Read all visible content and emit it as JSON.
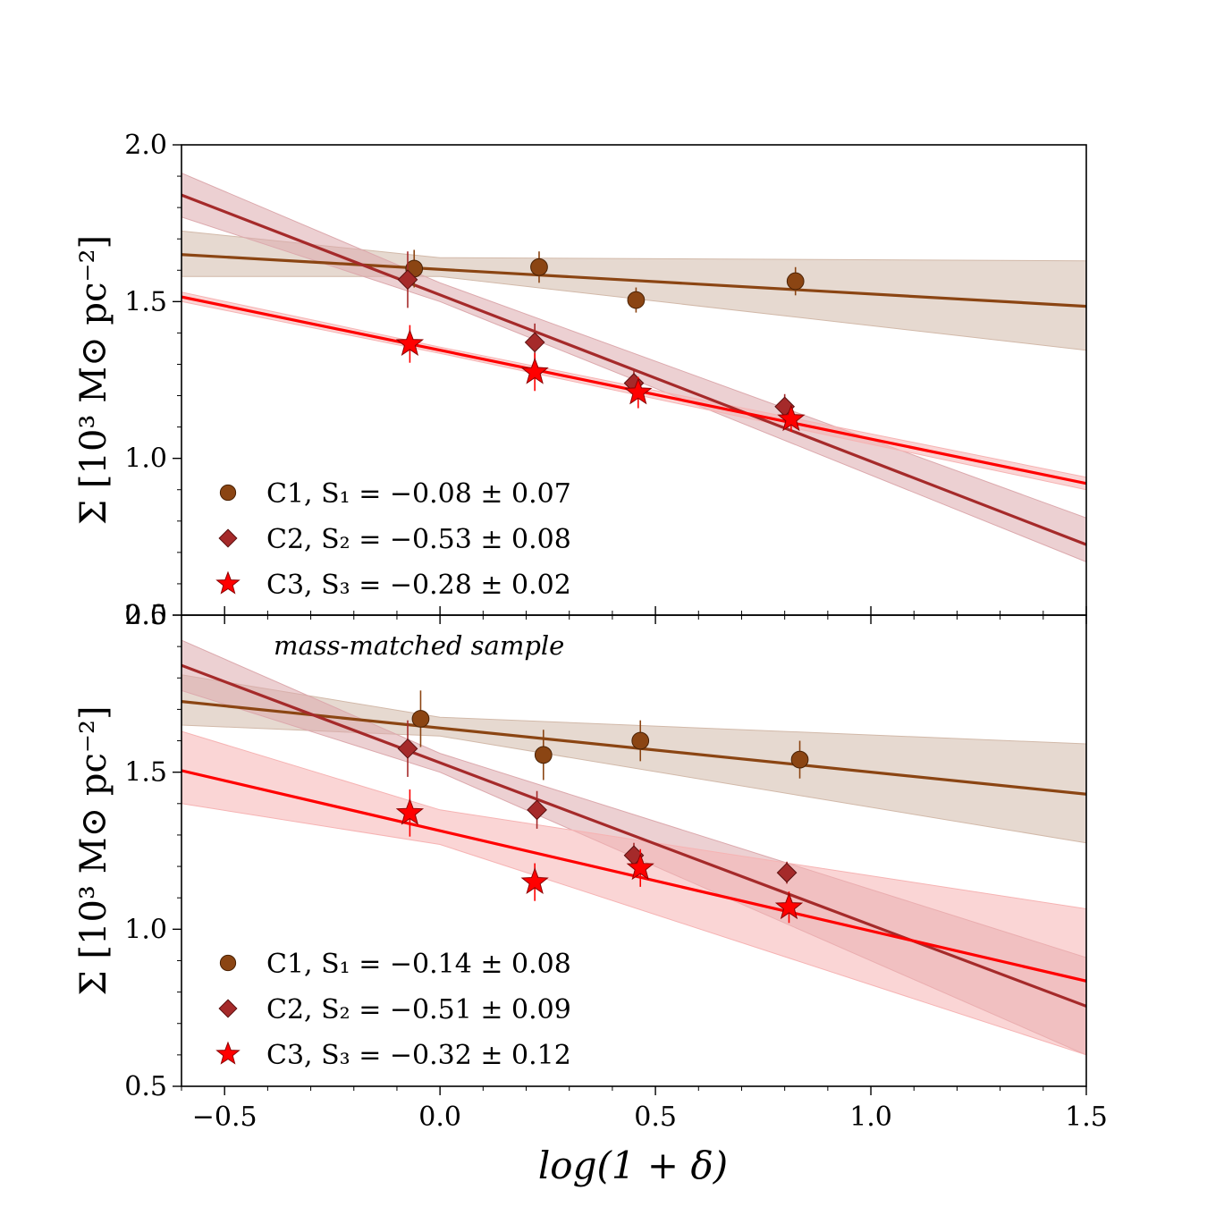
{
  "chart_data": [
    {
      "type": "scatter",
      "panel": "top",
      "title": "",
      "annotation": "",
      "xlabel": "log(1 + δ)",
      "ylabel": "Σ [10³ M⊙ pc⁻²]",
      "xlim": [
        -0.6,
        1.5
      ],
      "ylim": [
        0.5,
        2.0
      ],
      "x_ticks": [
        "−0.5",
        "0.0",
        "0.5",
        "1.0",
        "1.5"
      ],
      "y_ticks": [
        "0.5",
        "1.0",
        "1.5",
        "2.0"
      ],
      "legend_position": "lower-left",
      "series": [
        {
          "name": "C1",
          "label": "C1,  S₁ = −0.08 ± 0.07",
          "marker": "circle",
          "color": "#8B4513",
          "band_color": "#D2B9A9",
          "points": [
            {
              "x": -0.06,
              "y": 1.605,
              "err": 0.06
            },
            {
              "x": 0.23,
              "y": 1.61,
              "err": 0.05
            },
            {
              "x": 0.455,
              "y": 1.505,
              "err": 0.04
            },
            {
              "x": 0.825,
              "y": 1.565,
              "err": 0.045
            }
          ],
          "fit": {
            "x0": -0.6,
            "x1": 1.5,
            "y0": 1.65,
            "y1": 1.485
          },
          "band": {
            "x": [
              -0.6,
              0.0,
              1.5
            ],
            "lo": [
              1.58,
              1.58,
              1.345
            ],
            "hi": [
              1.725,
              1.64,
              1.63
            ]
          }
        },
        {
          "name": "C2",
          "label": "C2,  S₂ = −0.53 ± 0.08",
          "marker": "diamond",
          "color": "#A52A2A",
          "band_color": "#DCA9AD",
          "points": [
            {
              "x": -0.075,
              "y": 1.57,
              "err": 0.09
            },
            {
              "x": 0.22,
              "y": 1.37,
              "err": 0.06
            },
            {
              "x": 0.45,
              "y": 1.24,
              "err": 0.04
            },
            {
              "x": 0.8,
              "y": 1.165,
              "err": 0.04
            }
          ],
          "fit": {
            "x0": -0.6,
            "x1": 1.5,
            "y0": 1.84,
            "y1": 0.725
          },
          "band": {
            "x": [
              -0.6,
              0.0,
              1.5
            ],
            "lo": [
              1.77,
              1.5,
              0.67
            ],
            "hi": [
              1.91,
              1.56,
              0.81
            ]
          }
        },
        {
          "name": "C3",
          "label": "C3,  S₃ = −0.28 ± 0.02",
          "marker": "star",
          "color": "#FF0000",
          "band_color": "#F6B3B3",
          "points": [
            {
              "x": -0.07,
              "y": 1.365,
              "err": 0.06
            },
            {
              "x": 0.22,
              "y": 1.275,
              "err": 0.06
            },
            {
              "x": 0.46,
              "y": 1.21,
              "err": 0.05
            },
            {
              "x": 0.815,
              "y": 1.125,
              "err": 0.04
            }
          ],
          "fit": {
            "x0": -0.6,
            "x1": 1.5,
            "y0": 1.515,
            "y1": 0.92
          },
          "band": {
            "x": [
              -0.6,
              0.0,
              1.5
            ],
            "lo": [
              1.5,
              1.335,
              0.9
            ],
            "hi": [
              1.53,
              1.355,
              0.94
            ]
          }
        }
      ]
    },
    {
      "type": "scatter",
      "panel": "bottom",
      "title": "",
      "annotation": "mass-matched sample",
      "xlabel": "log(1 + δ)",
      "ylabel": "Σ [10³ M⊙ pc⁻²]",
      "xlim": [
        -0.6,
        1.5
      ],
      "ylim": [
        0.5,
        2.0
      ],
      "x_ticks": [
        "−0.5",
        "0.0",
        "0.5",
        "1.0",
        "1.5"
      ],
      "y_ticks": [
        "0.5",
        "1.0",
        "1.5",
        "2.0"
      ],
      "legend_position": "lower-left",
      "series": [
        {
          "name": "C1",
          "label": "C1,  S₁ = −0.14 ± 0.08",
          "marker": "circle",
          "color": "#8B4513",
          "band_color": "#D2B9A9",
          "points": [
            {
              "x": -0.045,
              "y": 1.67,
              "err": 0.09
            },
            {
              "x": 0.24,
              "y": 1.555,
              "err": 0.08
            },
            {
              "x": 0.465,
              "y": 1.6,
              "err": 0.065
            },
            {
              "x": 0.835,
              "y": 1.54,
              "err": 0.06
            }
          ],
          "fit": {
            "x0": -0.6,
            "x1": 1.5,
            "y0": 1.725,
            "y1": 1.43
          },
          "band": {
            "x": [
              -0.6,
              0.0,
              1.5
            ],
            "lo": [
              1.65,
              1.615,
              1.275
            ],
            "hi": [
              1.81,
              1.675,
              1.59
            ]
          }
        },
        {
          "name": "C2",
          "label": "C2,  S₂ = −0.51 ± 0.09",
          "marker": "diamond",
          "color": "#A52A2A",
          "band_color": "#DCA9AD",
          "points": [
            {
              "x": -0.075,
              "y": 1.575,
              "err": 0.09
            },
            {
              "x": 0.225,
              "y": 1.38,
              "err": 0.06
            },
            {
              "x": 0.45,
              "y": 1.235,
              "err": 0.04
            },
            {
              "x": 0.805,
              "y": 1.18,
              "err": 0.035
            }
          ],
          "fit": {
            "x0": -0.6,
            "x1": 1.5,
            "y0": 1.84,
            "y1": 0.755
          },
          "band": {
            "x": [
              -0.6,
              0.0,
              1.5
            ],
            "lo": [
              1.76,
              1.5,
              0.6
            ],
            "hi": [
              1.92,
              1.56,
              0.91
            ]
          }
        },
        {
          "name": "C3",
          "label": "C3,  S₃ = −0.32 ± 0.12",
          "marker": "star",
          "color": "#FF0000",
          "band_color": "#F6B3B3",
          "points": [
            {
              "x": -0.07,
              "y": 1.37,
              "err": 0.075
            },
            {
              "x": 0.22,
              "y": 1.15,
              "err": 0.06
            },
            {
              "x": 0.465,
              "y": 1.195,
              "err": 0.06
            },
            {
              "x": 0.81,
              "y": 1.07,
              "err": 0.05
            }
          ],
          "fit": {
            "x0": -0.6,
            "x1": 1.5,
            "y0": 1.505,
            "y1": 0.835
          },
          "band": {
            "x": [
              -0.6,
              0.0,
              1.5
            ],
            "lo": [
              1.4,
              1.27,
              0.6
            ],
            "hi": [
              1.63,
              1.38,
              1.065
            ]
          }
        }
      ]
    }
  ]
}
